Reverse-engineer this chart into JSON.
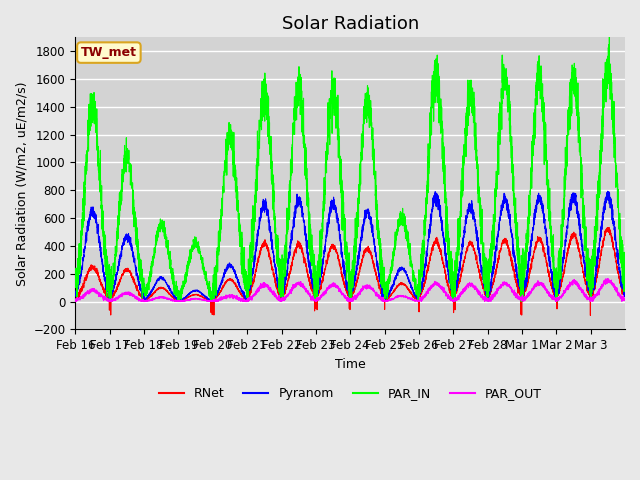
{
  "title": "Solar Radiation",
  "ylabel": "Solar Radiation (W/m2, uE/m2/s)",
  "xlabel": "Time",
  "ylim": [
    -200,
    1900
  ],
  "yticks": [
    -200,
    0,
    200,
    400,
    600,
    800,
    1000,
    1200,
    1400,
    1600,
    1800
  ],
  "x_tick_labels": [
    "Feb 16",
    "Feb 17",
    "Feb 18",
    "Feb 19",
    "Feb 20",
    "Feb 21",
    "Feb 22",
    "Feb 23",
    "Feb 24",
    "Feb 25",
    "Feb 26",
    "Feb 27",
    "Feb 28",
    "Mar 1",
    "Mar 2",
    "Mar 3"
  ],
  "station_label": "TW_met",
  "station_label_color": "#8B0000",
  "station_box_facecolor": "#FFFACD",
  "station_box_edgecolor": "#DAA520",
  "colors": {
    "RNet": "#FF0000",
    "Pyranom": "#0000FF",
    "PAR_IN": "#00FF00",
    "PAR_OUT": "#FF00FF"
  },
  "legend_entries": [
    "RNet",
    "Pyranom",
    "PAR_IN",
    "PAR_OUT"
  ],
  "background_color": "#E8E8E8",
  "plot_bg_color": "#D3D3D3",
  "grid_color": "#FFFFFF",
  "title_fontsize": 13,
  "label_fontsize": 9,
  "tick_fontsize": 8.5,
  "par_in_peaks": [
    1400,
    1050,
    550,
    420,
    1200,
    1520,
    1540,
    1510,
    1450,
    610,
    1620,
    1490,
    1600,
    1600,
    1600,
    1700
  ],
  "pyranom_peaks": [
    650,
    470,
    170,
    80,
    260,
    700,
    725,
    700,
    640,
    240,
    750,
    680,
    730,
    740,
    750,
    760
  ],
  "rnet_peaks": [
    250,
    230,
    100,
    50,
    160,
    420,
    410,
    400,
    380,
    130,
    430,
    420,
    440,
    450,
    480,
    520
  ],
  "par_out_peaks": [
    80,
    60,
    30,
    20,
    40,
    120,
    130,
    120,
    110,
    40,
    130,
    120,
    130,
    130,
    140,
    150
  ]
}
